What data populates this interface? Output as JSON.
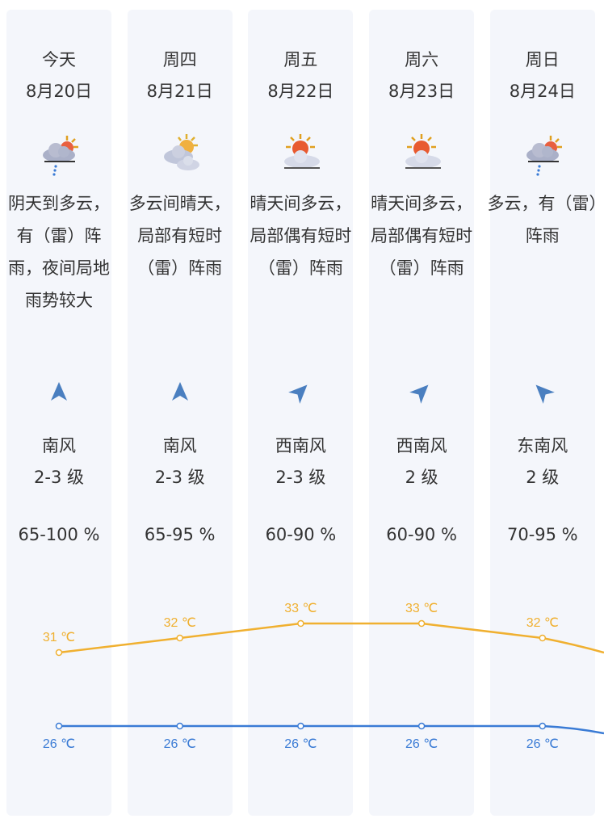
{
  "days": [
    {
      "weekday": "今天",
      "date": "8月20日",
      "icon": "cloudy-rain-sun-icon",
      "desc": "阴天到多云，有（雷）阵雨，夜间局地雨势较大",
      "wind_dir": "南风",
      "wind_arrow_deg": 0,
      "wind_level": "2-3 级",
      "humidity": "65-100 %"
    },
    {
      "weekday": "周四",
      "date": "8月21日",
      "icon": "partly-cloudy-icon",
      "desc": "多云间晴天，局部有短时（雷）阵雨",
      "wind_dir": "南风",
      "wind_arrow_deg": 0,
      "wind_level": "2-3 级",
      "humidity": "65-95 %"
    },
    {
      "weekday": "周五",
      "date": "8月22日",
      "icon": "sunny-cloudy-icon",
      "desc": "晴天间多云，局部偶有短时（雷）阵雨",
      "wind_dir": "西南风",
      "wind_arrow_deg": 45,
      "wind_level": "2-3 级",
      "humidity": "60-90 %"
    },
    {
      "weekday": "周六",
      "date": "8月23日",
      "icon": "sunny-cloudy-icon",
      "desc": "晴天间多云，局部偶有短时（雷）阵雨",
      "wind_dir": "西南风",
      "wind_arrow_deg": 45,
      "wind_level": "2 级",
      "humidity": "60-90 %"
    },
    {
      "weekday": "周日",
      "date": "8月24日",
      "icon": "cloudy-rain-sun-icon",
      "desc": "多云，有（雷）阵雨",
      "wind_dir": "东南风",
      "wind_arrow_deg": -45,
      "wind_level": "2 级",
      "humidity": "70-95 %"
    }
  ],
  "chart_data": {
    "type": "line",
    "categories": [
      "8月20日",
      "8月21日",
      "8月22日",
      "8月23日",
      "8月24日"
    ],
    "series": [
      {
        "values": [
          31,
          32,
          33,
          33,
          32
        ],
        "labels": [
          "31 ℃",
          "32 ℃",
          "33 ℃",
          "33 ℃",
          "32 ℃"
        ],
        "color": "#f0b030"
      },
      {
        "values": [
          26,
          26,
          26,
          26,
          26
        ],
        "labels": [
          "26 ℃",
          "26 ℃",
          "26 ℃",
          "26 ℃",
          "26 ℃"
        ],
        "color": "#3a7bd5"
      }
    ]
  },
  "colors": {
    "high": "#f0b030",
    "low": "#3a7bd5",
    "arrow": "#4a7fc0",
    "panel": "#f4f6fb"
  }
}
